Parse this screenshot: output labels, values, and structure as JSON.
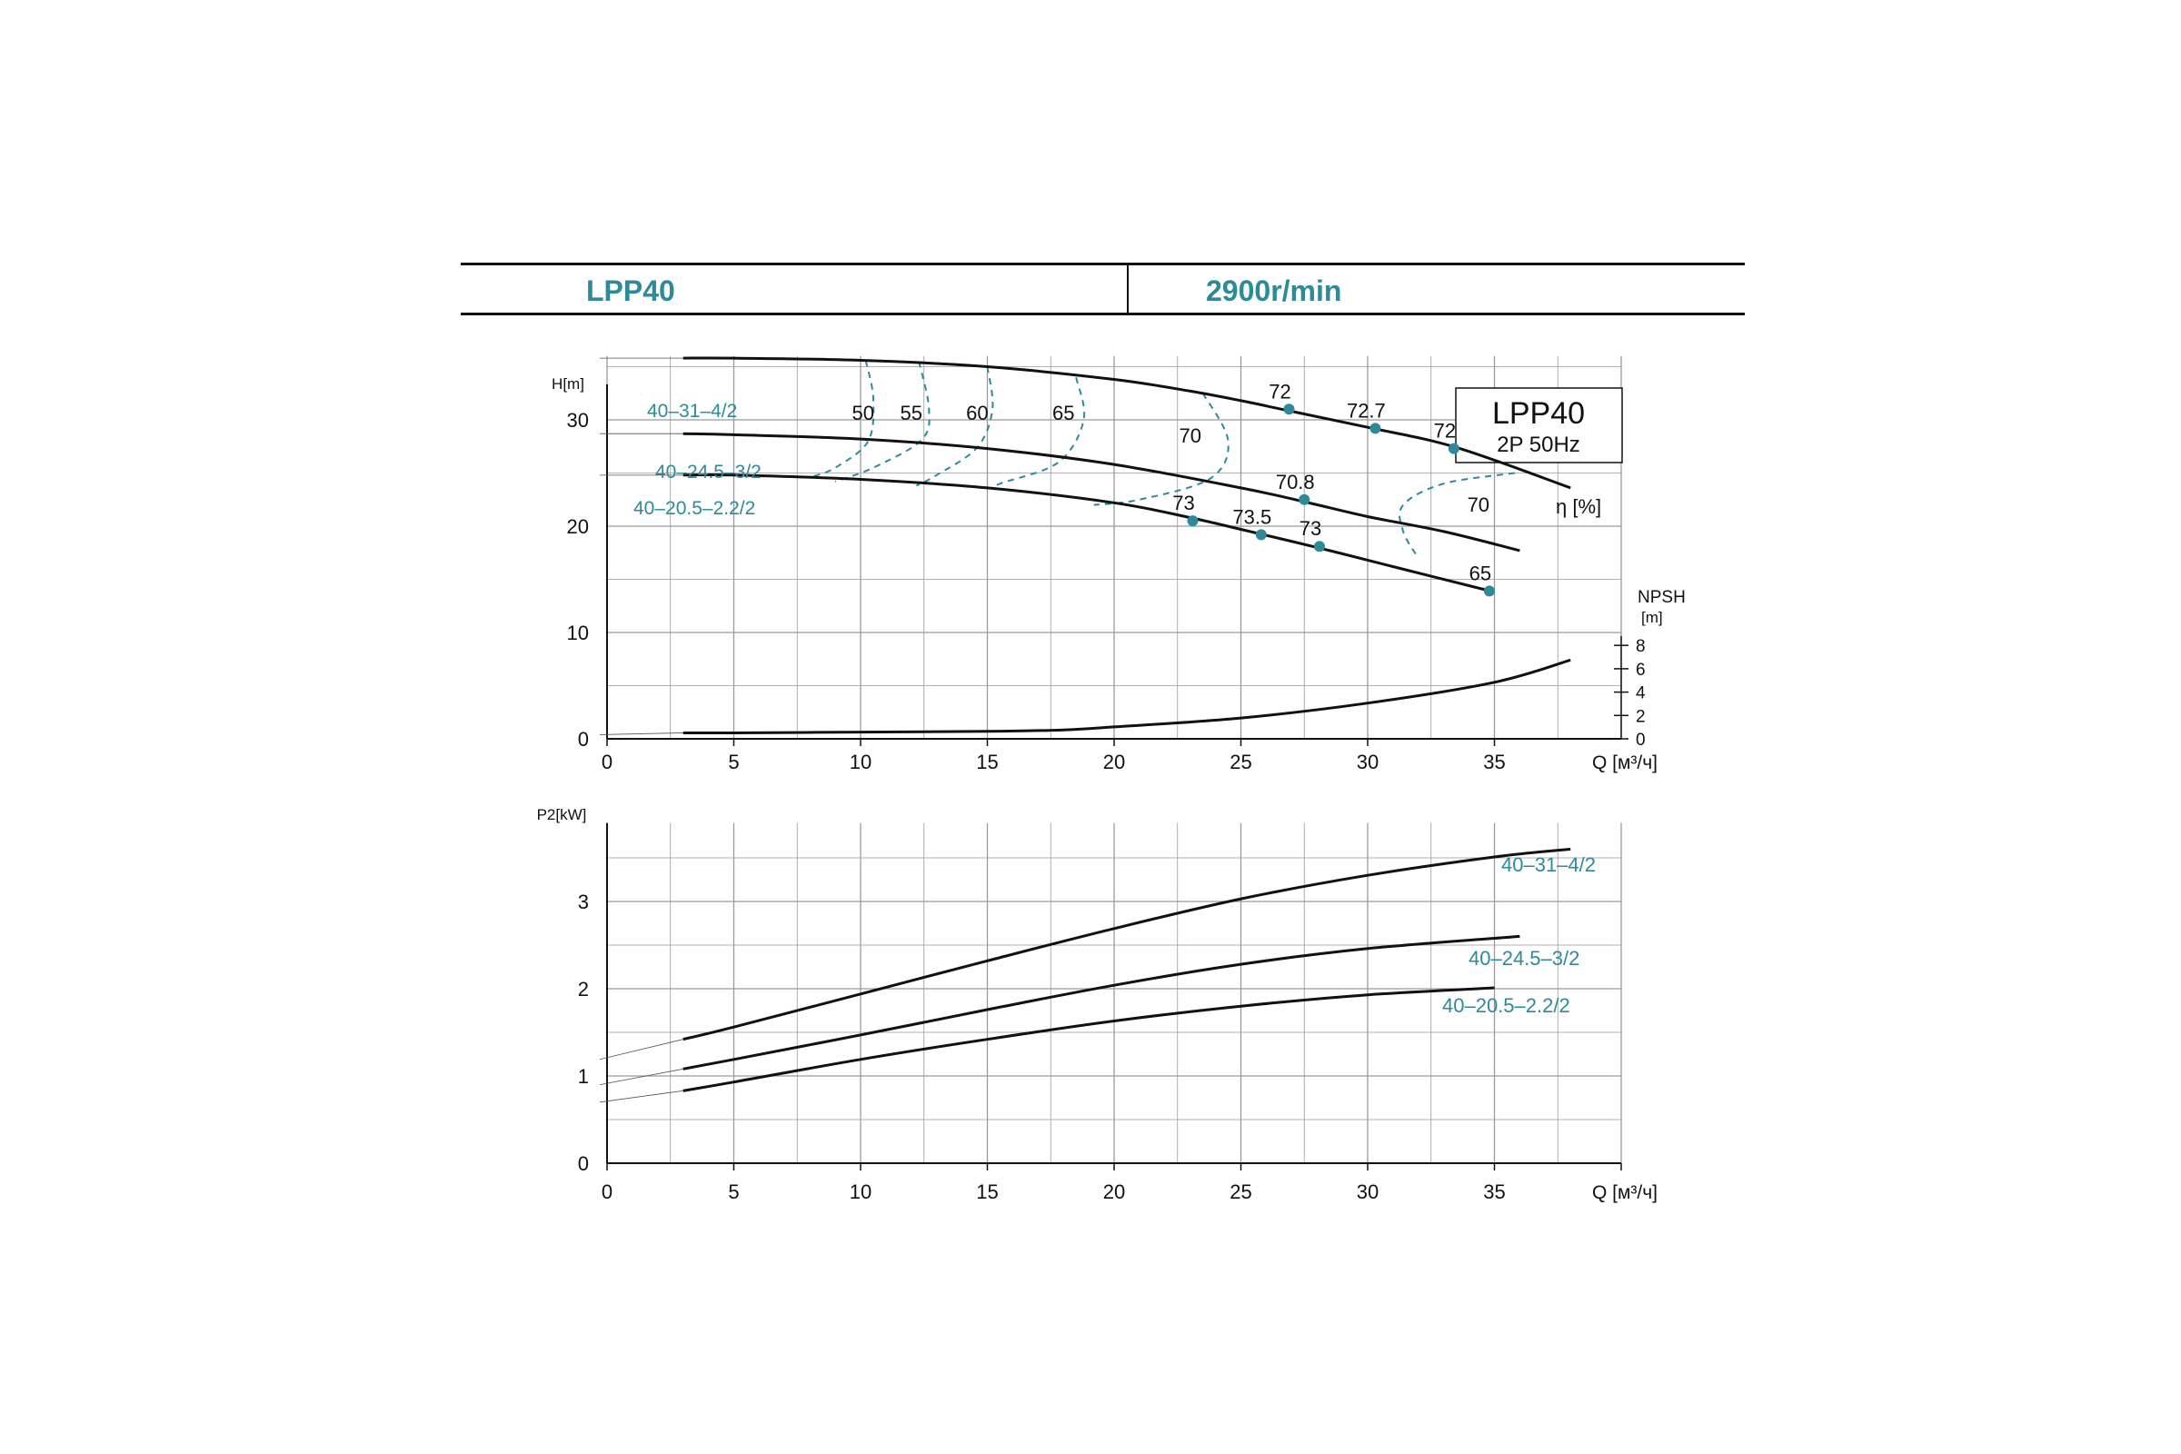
{
  "header": {
    "model": "LPP40",
    "speed": "2900r/min"
  },
  "colors": {
    "accent": "#2e8a99",
    "curve": "#111111",
    "grid": "#9a9a9a"
  },
  "chart_data": [
    {
      "type": "line",
      "chart": "head-npsh",
      "legend_box": {
        "model": "LPP40",
        "spec": "2P  50Hz"
      },
      "ylabel": "H[m]",
      "xlabel": "Q [м³/ч]",
      "xlim": [
        0,
        40
      ],
      "ylim": [
        0,
        40
      ],
      "x_ticks": [
        0,
        5,
        10,
        15,
        20,
        25,
        30,
        35
      ],
      "y_ticks": [
        0,
        10,
        20,
        30
      ],
      "npsh_axis": {
        "label_top": "NPSH",
        "label_unit": "[m]",
        "ticks": [
          0,
          2,
          4,
          6,
          8
        ],
        "range": [
          0,
          20
        ]
      },
      "efficiency_label": "η [%]",
      "series": [
        {
          "name": "40–31–4/2",
          "x": [
            3,
            5,
            10,
            15,
            20,
            23,
            25,
            27,
            30,
            33.5,
            38
          ],
          "y": [
            35.8,
            35.8,
            35.6,
            35.0,
            33.8,
            32.7,
            31.8,
            30.8,
            29.3,
            27.4,
            23.6
          ]
        },
        {
          "name": "40–24.5–3/2",
          "x": [
            3,
            5,
            10,
            15,
            20,
            25,
            27.5,
            30,
            33,
            36
          ],
          "y": [
            28.7,
            28.6,
            28.2,
            27.3,
            25.8,
            23.6,
            22.3,
            20.9,
            19.5,
            17.7
          ]
        },
        {
          "name": "40–20.5–2.2/2",
          "x": [
            3,
            5,
            10,
            15,
            20,
            23,
            25,
            28,
            31,
            35
          ],
          "y": [
            24.8,
            24.8,
            24.4,
            23.6,
            22.2,
            20.8,
            19.7,
            18.0,
            16.2,
            13.8
          ]
        }
      ],
      "npsh_curve": {
        "x": [
          3,
          5,
          10,
          15,
          18,
          20,
          25,
          30,
          35,
          38
        ],
        "y": [
          0.8,
          0.8,
          0.9,
          1.0,
          1.2,
          1.6,
          2.8,
          4.8,
          7.6,
          10.6
        ]
      },
      "efficiency_points": [
        {
          "label": "72",
          "x": 26.9,
          "y": 31.0
        },
        {
          "label": "72.7",
          "x": 30.3,
          "y": 29.2
        },
        {
          "label": "72",
          "x": 33.4,
          "y": 27.3
        },
        {
          "label": "70.8",
          "x": 27.5,
          "y": 22.5
        },
        {
          "label": "73",
          "x": 23.1,
          "y": 20.5
        },
        {
          "label": "73.5",
          "x": 25.8,
          "y": 19.2
        },
        {
          "label": "73",
          "x": 28.1,
          "y": 18.1
        },
        {
          "label": "65",
          "x": 34.8,
          "y": 13.9
        }
      ],
      "efficiency_labels_top": [
        {
          "label": "50",
          "x": 10.1
        },
        {
          "label": "55",
          "x": 12.0
        },
        {
          "label": "60",
          "x": 14.6
        },
        {
          "label": "65",
          "x": 18.0
        },
        {
          "label": "70",
          "x": 23.0
        },
        {
          "label": "70",
          "x": 35.8
        }
      ],
      "iso_efficiency_contours": [
        {
          "label": "50",
          "x": [
            10.2,
            10.5,
            10.3,
            9.0,
            8.0
          ],
          "y": [
            35.6,
            32.0,
            28.0,
            25.5,
            24.6
          ]
        },
        {
          "label": "55",
          "x": [
            12.3,
            12.7,
            12.4,
            10.5,
            9.0
          ],
          "y": [
            35.5,
            31.0,
            28.1,
            25.5,
            24.2
          ]
        },
        {
          "label": "60",
          "x": [
            15.0,
            15.2,
            14.6,
            13.0,
            12.2
          ],
          "y": [
            35.0,
            31.0,
            27.4,
            24.8,
            23.8
          ]
        },
        {
          "label": "65",
          "x": [
            18.5,
            18.8,
            17.8,
            15.5,
            15.2
          ],
          "y": [
            34.0,
            30.0,
            26.0,
            24.0,
            23.5
          ]
        },
        {
          "label": "70",
          "x": [
            23.5,
            24.5,
            23.8,
            21.0,
            19.2
          ],
          "y": [
            32.5,
            28.0,
            24.5,
            22.5,
            22.0
          ]
        },
        {
          "label": "70",
          "x": [
            35.8,
            33.0,
            31.4,
            31.4,
            32.0
          ],
          "y": [
            25.0,
            24.0,
            22.0,
            19.5,
            17.0
          ]
        }
      ]
    },
    {
      "type": "line",
      "chart": "power",
      "ylabel": "P2[kW]",
      "xlabel": "Q [м³/ч]",
      "xlim": [
        0,
        40
      ],
      "ylim": [
        0,
        4
      ],
      "x_ticks": [
        0,
        5,
        10,
        15,
        20,
        25,
        30,
        35
      ],
      "y_ticks": [
        0,
        1,
        2,
        3
      ],
      "series": [
        {
          "name": "40–31–4/2",
          "x": [
            3,
            5,
            10,
            15,
            20,
            25,
            30,
            35,
            38
          ],
          "y": [
            1.42,
            1.56,
            1.94,
            2.32,
            2.69,
            3.03,
            3.3,
            3.51,
            3.6
          ]
        },
        {
          "name": "40–24.5–3/2",
          "x": [
            3,
            5,
            10,
            15,
            20,
            25,
            30,
            36
          ],
          "y": [
            1.08,
            1.19,
            1.47,
            1.76,
            2.04,
            2.28,
            2.46,
            2.6
          ]
        },
        {
          "name": "40–20.5–2.2/2",
          "x": [
            3,
            5,
            10,
            15,
            20,
            25,
            30,
            35
          ],
          "y": [
            0.83,
            0.93,
            1.19,
            1.42,
            1.63,
            1.8,
            1.93,
            2.01
          ]
        }
      ],
      "extrapolated_start": [
        1.19,
        0.9,
        0.7
      ]
    }
  ]
}
